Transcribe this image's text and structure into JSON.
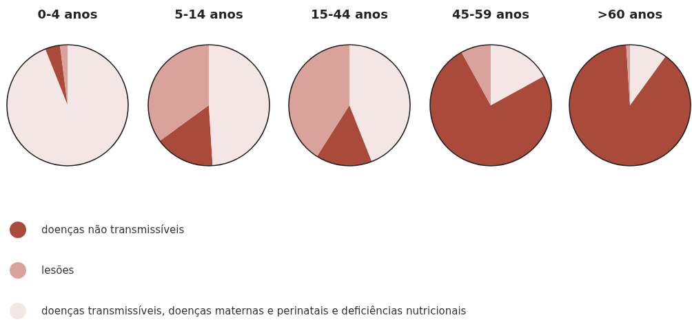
{
  "chart_data": [
    {
      "type": "pie",
      "title": "0-4 anos",
      "categories": [
        "doenças não transmissíveis",
        "lesões",
        "doenças transmissíveis, doenças maternas e perinatais e deficiências nutricionais"
      ],
      "values": [
        4,
        2,
        94
      ],
      "colors": [
        "#a94a3a",
        "#d9a39b",
        "#f5e6e6"
      ],
      "legend": "bottom"
    },
    {
      "type": "pie",
      "title": "5-14 anos",
      "categories": [
        null,
        null,
        null
      ],
      "values": [
        16,
        35,
        49
      ],
      "colors": [
        "#a94a3a",
        "#d9a39b",
        "#f5e6e6"
      ]
    },
    {
      "type": "pie",
      "title": "15-44 anos",
      "categories": [
        null,
        null,
        null
      ],
      "values": [
        15,
        41,
        44
      ],
      "colors": [
        "#a94a3a",
        "#d9a39b",
        "#f5e6e6"
      ]
    },
    {
      "type": "pie",
      "title": "45-59 anos",
      "categories": [
        null,
        null,
        null
      ],
      "values": [
        75,
        8,
        17
      ],
      "colors": [
        "#a94a3a",
        "#d9a39b",
        "#f5e6e6"
      ]
    },
    {
      "type": "pie",
      "title": ">60 anos",
      "categories": [
        null,
        null,
        null
      ],
      "values": [
        89,
        1,
        10
      ],
      "colors": [
        "#a94a3a",
        "#d9a39b",
        "#f5e6e6"
      ]
    }
  ]
}
